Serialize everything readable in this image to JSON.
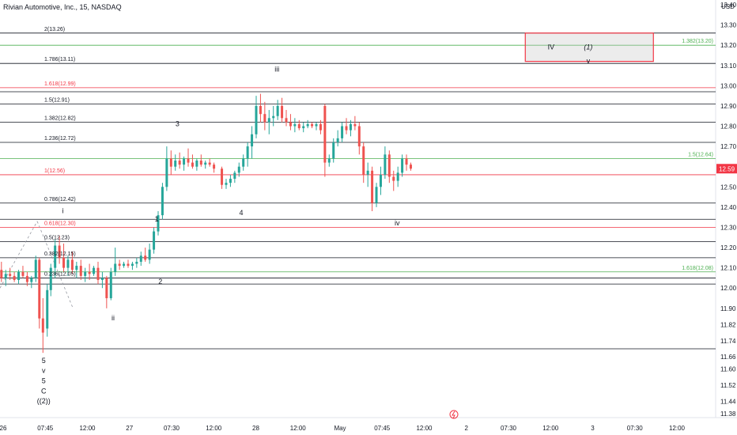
{
  "header": {
    "title": "Rivian Automotive, Inc., 15, NASDAQ",
    "currency": "USD"
  },
  "colors": {
    "up": "#26a69a",
    "down": "#ef5350",
    "black": "#131722",
    "red": "#f23645",
    "green": "#4caf50",
    "price_tag": "#f23645"
  },
  "last_price": "12.59",
  "chart_data": {
    "type": "candlestick",
    "title": "Rivian Automotive, Inc., 15, NASDAQ",
    "ylim": [
      11.36,
      13.4
    ],
    "y_ticks": [
      "13.40",
      "13.30",
      "13.20",
      "13.10",
      "13.00",
      "12.90",
      "12.80",
      "12.70",
      "12.60",
      "12.50",
      "12.40",
      "12.30",
      "12.20",
      "12.10",
      "12.00",
      "11.90",
      "11.82",
      "11.74",
      "11.66",
      "11.60",
      "11.52",
      "11.44",
      "11.38"
    ],
    "x_ticks": [
      "26",
      "07:45",
      "12:00",
      "27",
      "07:30",
      "12:00",
      "28",
      "12:00",
      "May",
      "07:45",
      "12:00",
      "2",
      "07:30",
      "12:00",
      "3",
      "07:30",
      "12:00"
    ],
    "fib_levels": [
      {
        "label": "2(13.26)",
        "value": 13.26,
        "color": "#131722",
        "side": "left"
      },
      {
        "label": "1.786(13.11)",
        "value": 13.11,
        "color": "#131722",
        "side": "left"
      },
      {
        "label": "1.618(12.99)",
        "value": 12.99,
        "color": "#f23645",
        "side": "left"
      },
      {
        "label": "1.5(12.91)",
        "value": 12.91,
        "color": "#131722",
        "side": "left"
      },
      {
        "label": "1.382(12.82)",
        "value": 12.82,
        "color": "#131722",
        "side": "left"
      },
      {
        "label": "1.236(12.72)",
        "value": 12.72,
        "color": "#131722",
        "side": "left"
      },
      {
        "label": "1(12.56)",
        "value": 12.56,
        "color": "#f23645",
        "side": "left"
      },
      {
        "label": "0.786(12.42)",
        "value": 12.42,
        "color": "#131722",
        "side": "left"
      },
      {
        "label": "0.618(12.30)",
        "value": 12.3,
        "color": "#f23645",
        "side": "left"
      },
      {
        "label": "0.5(12.23)",
        "value": 12.23,
        "color": "#131722",
        "side": "left"
      },
      {
        "label": "0.382(12.15)",
        "value": 12.15,
        "color": "#131722",
        "side": "left"
      },
      {
        "label": "0.236(12.05)",
        "value": 12.05,
        "color": "#131722",
        "side": "left"
      },
      {
        "label": "1.382(13.20)",
        "value": 13.2,
        "color": "#4caf50",
        "side": "right"
      },
      {
        "label": "1.5(12.64)",
        "value": 12.64,
        "color": "#4caf50",
        "side": "right"
      },
      {
        "label": "1.618(12.08)",
        "value": 12.08,
        "color": "#4caf50",
        "side": "right"
      }
    ],
    "extra_lines": [
      {
        "value": 12.97,
        "color": "#131722"
      },
      {
        "value": 12.34,
        "color": "#131722"
      },
      {
        "value": 12.02,
        "color": "#131722"
      },
      {
        "value": 11.7,
        "color": "#131722"
      }
    ],
    "wave_labels": [
      {
        "text": "5",
        "x": 0.061,
        "y": 11.63
      },
      {
        "text": "v",
        "x": 0.061,
        "y": 11.58
      },
      {
        "text": "5",
        "x": 0.061,
        "y": 11.53
      },
      {
        "text": "C",
        "x": 0.061,
        "y": 11.48
      },
      {
        "text": "((2))",
        "x": 0.061,
        "y": 11.43
      },
      {
        "text": "i",
        "x": 0.088,
        "y": 12.37
      },
      {
        "text": "ii",
        "x": 0.158,
        "y": 11.84
      },
      {
        "text": "iii",
        "x": 0.387,
        "y": 13.07
      },
      {
        "text": "iv",
        "x": 0.555,
        "y": 12.31
      },
      {
        "text": "IV",
        "x": 0.77,
        "y": 13.18
      },
      {
        "text": "(1)",
        "x": 0.822,
        "y": 13.18
      },
      {
        "text": "v",
        "x": 0.822,
        "y": 13.11
      },
      {
        "text": "3",
        "x": 0.248,
        "y": 12.8
      },
      {
        "text": "4",
        "x": 0.337,
        "y": 12.36
      },
      {
        "text": "1",
        "x": 0.219,
        "y": 12.33
      },
      {
        "text": "2",
        "x": 0.224,
        "y": 12.02
      }
    ],
    "target_box": {
      "y_top": 13.26,
      "y_bottom": 13.12,
      "x_start": 0.734,
      "x_end": 0.913
    },
    "candles": [
      [
        0.002,
        12.09,
        12.13,
        12.03,
        12.05
      ],
      [
        0.008,
        12.05,
        12.09,
        12.01,
        12.07
      ],
      [
        0.014,
        12.07,
        12.1,
        12.04,
        12.06
      ],
      [
        0.02,
        12.06,
        12.08,
        12.03,
        12.04
      ],
      [
        0.026,
        12.04,
        12.09,
        12.02,
        12.08
      ],
      [
        0.032,
        12.08,
        12.11,
        12.05,
        12.06
      ],
      [
        0.038,
        12.06,
        12.08,
        12.01,
        12.03
      ],
      [
        0.044,
        12.03,
        12.06,
        12.0,
        12.05
      ],
      [
        0.05,
        12.05,
        12.16,
        12.03,
        12.14
      ],
      [
        0.055,
        12.14,
        12.15,
        11.8,
        11.85
      ],
      [
        0.06,
        11.85,
        11.95,
        11.68,
        11.78
      ],
      [
        0.066,
        11.8,
        12.02,
        11.76,
        11.99
      ],
      [
        0.071,
        11.99,
        12.12,
        11.96,
        12.1
      ],
      [
        0.077,
        12.1,
        12.24,
        12.05,
        12.21
      ],
      [
        0.083,
        12.21,
        12.26,
        12.12,
        12.15
      ],
      [
        0.089,
        12.15,
        12.22,
        12.08,
        12.1
      ],
      [
        0.095,
        12.1,
        12.16,
        12.06,
        12.14
      ],
      [
        0.101,
        12.14,
        12.18,
        12.07,
        12.09
      ],
      [
        0.107,
        12.09,
        12.13,
        12.05,
        12.11
      ],
      [
        0.113,
        12.11,
        12.14,
        12.04,
        12.06
      ],
      [
        0.119,
        12.06,
        12.1,
        12.03,
        12.08
      ],
      [
        0.125,
        12.08,
        12.12,
        12.04,
        12.07
      ],
      [
        0.131,
        12.07,
        12.11,
        12.06,
        12.1
      ],
      [
        0.137,
        12.1,
        12.13,
        12.02,
        12.04
      ],
      [
        0.143,
        12.04,
        12.08,
        12.0,
        12.05
      ],
      [
        0.149,
        12.05,
        12.06,
        11.9,
        11.95
      ],
      [
        0.155,
        11.95,
        12.1,
        11.94,
        12.08
      ],
      [
        0.161,
        12.08,
        12.2,
        12.06,
        12.12
      ],
      [
        0.167,
        12.12,
        12.14,
        12.09,
        12.11
      ],
      [
        0.173,
        12.11,
        12.13,
        12.1,
        12.12
      ],
      [
        0.179,
        12.12,
        12.14,
        12.1,
        12.11
      ],
      [
        0.185,
        12.11,
        12.13,
        12.09,
        12.12
      ],
      [
        0.191,
        12.12,
        12.15,
        12.1,
        12.13
      ],
      [
        0.197,
        12.13,
        12.18,
        12.11,
        12.16
      ],
      [
        0.203,
        12.16,
        12.2,
        12.13,
        12.14
      ],
      [
        0.209,
        12.14,
        12.22,
        12.12,
        12.19
      ],
      [
        0.215,
        12.19,
        12.3,
        12.17,
        12.28
      ],
      [
        0.221,
        12.28,
        12.38,
        12.26,
        12.36
      ],
      [
        0.227,
        12.36,
        12.52,
        12.34,
        12.5
      ],
      [
        0.233,
        12.5,
        12.7,
        12.48,
        12.64
      ],
      [
        0.239,
        12.64,
        12.68,
        12.56,
        12.6
      ],
      [
        0.245,
        12.6,
        12.66,
        12.58,
        12.63
      ],
      [
        0.251,
        12.63,
        12.67,
        12.59,
        12.61
      ],
      [
        0.257,
        12.61,
        12.65,
        12.58,
        12.64
      ],
      [
        0.263,
        12.64,
        12.69,
        12.6,
        12.62
      ],
      [
        0.269,
        12.62,
        12.66,
        12.59,
        12.6
      ],
      [
        0.275,
        12.6,
        12.64,
        12.58,
        12.63
      ],
      [
        0.281,
        12.63,
        12.66,
        12.6,
        12.61
      ],
      [
        0.287,
        12.61,
        12.63,
        12.59,
        12.62
      ],
      [
        0.293,
        12.62,
        12.64,
        12.6,
        12.61
      ],
      [
        0.299,
        12.61,
        12.62,
        12.57,
        12.59
      ],
      [
        0.31,
        12.59,
        12.6,
        12.49,
        12.51
      ],
      [
        0.316,
        12.51,
        12.54,
        12.49,
        12.52
      ],
      [
        0.322,
        12.52,
        12.56,
        12.5,
        12.54
      ],
      [
        0.328,
        12.54,
        12.58,
        12.52,
        12.57
      ],
      [
        0.334,
        12.57,
        12.62,
        12.55,
        12.6
      ],
      [
        0.34,
        12.6,
        12.66,
        12.58,
        12.64
      ],
      [
        0.346,
        12.64,
        12.72,
        12.6,
        12.7
      ],
      [
        0.352,
        12.7,
        12.8,
        12.64,
        12.76
      ],
      [
        0.358,
        12.76,
        12.95,
        12.74,
        12.9
      ],
      [
        0.364,
        12.9,
        12.96,
        12.82,
        12.86
      ],
      [
        0.37,
        12.86,
        12.92,
        12.78,
        12.82
      ],
      [
        0.376,
        12.82,
        12.88,
        12.76,
        12.84
      ],
      [
        0.382,
        12.84,
        12.9,
        12.8,
        12.85
      ],
      [
        0.388,
        12.85,
        12.93,
        12.83,
        12.9
      ],
      [
        0.394,
        12.9,
        12.94,
        12.82,
        12.84
      ],
      [
        0.4,
        12.84,
        12.88,
        12.8,
        12.82
      ],
      [
        0.406,
        12.82,
        12.86,
        12.78,
        12.8
      ],
      [
        0.412,
        12.8,
        12.84,
        12.77,
        12.81
      ],
      [
        0.418,
        12.81,
        12.83,
        12.78,
        12.79
      ],
      [
        0.424,
        12.79,
        12.82,
        12.77,
        12.8
      ],
      [
        0.43,
        12.8,
        12.83,
        12.79,
        12.81
      ],
      [
        0.436,
        12.81,
        12.82,
        12.79,
        12.8
      ],
      [
        0.442,
        12.8,
        12.82,
        12.78,
        12.81
      ],
      [
        0.448,
        12.81,
        12.83,
        12.76,
        12.78
      ],
      [
        0.454,
        12.9,
        12.91,
        12.55,
        12.62
      ],
      [
        0.46,
        12.62,
        12.66,
        12.6,
        12.64
      ],
      [
        0.466,
        12.64,
        12.74,
        12.62,
        12.72
      ],
      [
        0.472,
        12.72,
        12.78,
        12.7,
        12.74
      ],
      [
        0.478,
        12.74,
        12.82,
        12.72,
        12.8
      ],
      [
        0.484,
        12.8,
        12.84,
        12.76,
        12.78
      ],
      [
        0.49,
        12.78,
        12.83,
        12.75,
        12.81
      ],
      [
        0.496,
        12.81,
        12.85,
        12.78,
        12.8
      ],
      [
        0.502,
        12.8,
        12.82,
        12.66,
        12.7
      ],
      [
        0.508,
        12.7,
        12.72,
        12.52,
        12.56
      ],
      [
        0.514,
        12.56,
        12.62,
        12.5,
        12.58
      ],
      [
        0.52,
        12.58,
        12.6,
        12.38,
        12.42
      ],
      [
        0.526,
        12.42,
        12.52,
        12.4,
        12.5
      ],
      [
        0.532,
        12.5,
        12.6,
        12.46,
        12.56
      ],
      [
        0.538,
        12.56,
        12.7,
        12.54,
        12.66
      ],
      [
        0.544,
        12.66,
        12.68,
        12.52,
        12.55
      ],
      [
        0.55,
        12.55,
        12.58,
        12.48,
        12.53
      ],
      [
        0.556,
        12.53,
        12.6,
        12.5,
        12.57
      ],
      [
        0.562,
        12.57,
        12.66,
        12.55,
        12.64
      ],
      [
        0.568,
        12.64,
        12.66,
        12.58,
        12.61
      ],
      [
        0.574,
        12.61,
        12.62,
        12.58,
        12.59
      ]
    ]
  }
}
